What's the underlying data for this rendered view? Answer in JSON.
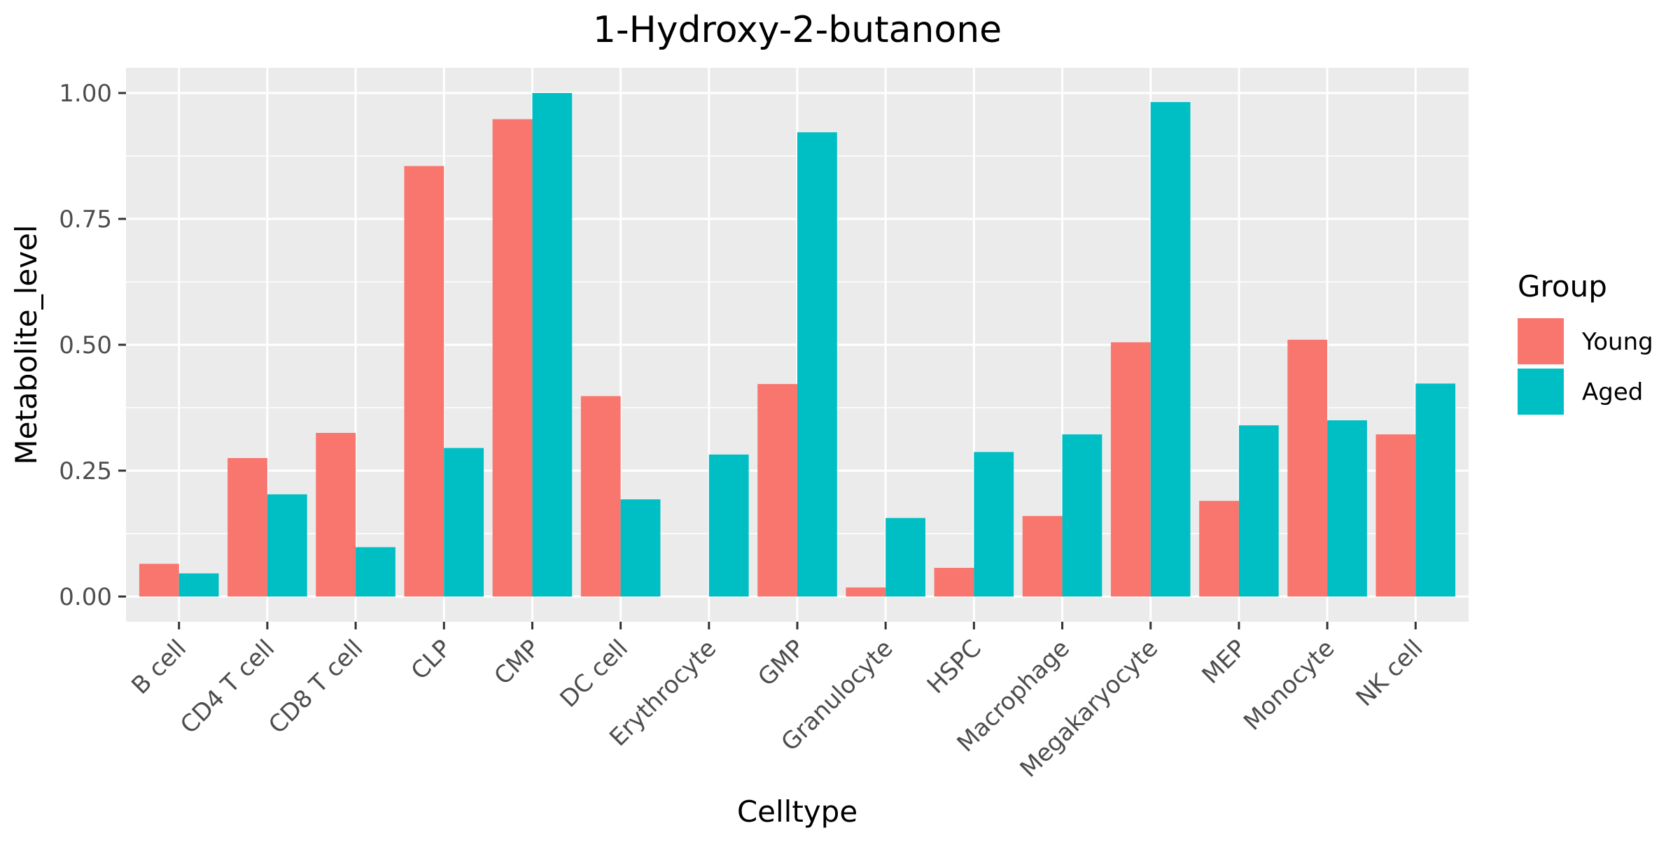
{
  "chart_data": {
    "type": "bar",
    "title": "1-Hydroxy-2-butanone",
    "xlabel": "Celltype",
    "ylabel": "Metabolite_level",
    "categories": [
      "B cell",
      "CD4 T cell",
      "CD8 T cell",
      "CLP",
      "CMP",
      "DC cell",
      "Erythrocyte",
      "GMP",
      "Granulocyte",
      "HSPC",
      "Macrophage",
      "Megakaryocyte",
      "MEP",
      "Monocyte",
      "NK cell"
    ],
    "series": [
      {
        "name": "Young",
        "color": "#F8766D",
        "values": [
          0.065,
          0.275,
          0.325,
          0.855,
          0.948,
          0.398,
          0.0,
          0.422,
          0.018,
          0.057,
          0.16,
          0.505,
          0.19,
          0.51,
          0.322
        ]
      },
      {
        "name": "Aged",
        "color": "#00BFC4",
        "values": [
          0.046,
          0.203,
          0.098,
          0.295,
          1.0,
          0.193,
          0.282,
          0.922,
          0.156,
          0.287,
          0.322,
          0.982,
          0.34,
          0.35,
          0.423
        ]
      }
    ],
    "ylim": [
      -0.05,
      1.05
    ],
    "yticks": [
      0,
      0.25,
      0.5,
      0.75,
      1.0
    ],
    "ytick_labels": [
      "0.00",
      "0.25",
      "0.50",
      "0.75",
      "1.00"
    ],
    "legend": {
      "title": "Group",
      "position": "right"
    },
    "grid": true,
    "panel_background": "#EBEBEB",
    "gridline_color": "#FFFFFF"
  }
}
